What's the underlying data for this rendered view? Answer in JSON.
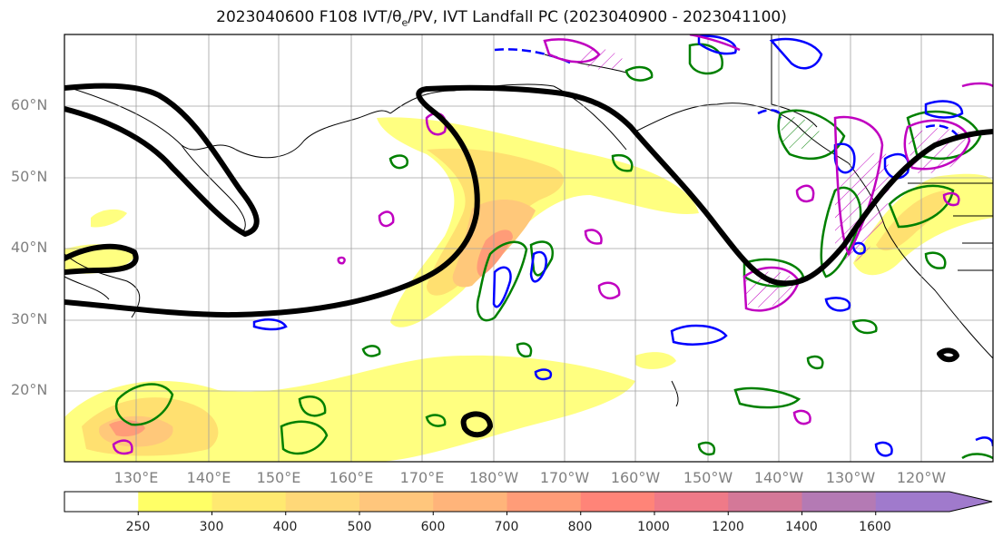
{
  "title": {
    "prefix": "2023040600 F108 IVT/",
    "theta": "θ",
    "theta_sub": "e",
    "suffix": "/PV, IVT Landfall PC (2023040900 - 2023041100)"
  },
  "map": {
    "lat_labels": [
      "60°N",
      "50°N",
      "40°N",
      "30°N",
      "20°N"
    ],
    "lon_labels": [
      "130°E",
      "140°E",
      "150°E",
      "160°E",
      "170°E",
      "180°W",
      "170°W",
      "160°W",
      "150°W",
      "140°W",
      "130°W",
      "120°W"
    ],
    "contour_colors": {
      "theta_e_pv": "#000000",
      "green": "#008000",
      "blue": "#0000ff",
      "magenta": "#c000c0"
    }
  },
  "colorbar": {
    "labels": [
      "250",
      "300",
      "400",
      "500",
      "600",
      "700",
      "800",
      "1000",
      "1200",
      "1400",
      "1600"
    ],
    "colors": [
      "#ffffff",
      "#ffff66",
      "#ffe970",
      "#ffd878",
      "#ffc67c",
      "#ffb47a",
      "#ff9c78",
      "#ff8478",
      "#ef7a88",
      "#d47898",
      "#b47ab4",
      "#a07acc"
    ]
  }
}
